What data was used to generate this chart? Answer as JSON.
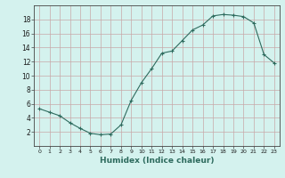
{
  "x": [
    0,
    1,
    2,
    3,
    4,
    5,
    6,
    7,
    8,
    9,
    10,
    11,
    12,
    13,
    14,
    15,
    16,
    17,
    18,
    19,
    20,
    21,
    22,
    23
  ],
  "y": [
    5.3,
    4.8,
    4.3,
    3.3,
    2.5,
    1.8,
    1.6,
    1.7,
    3.0,
    6.5,
    9.0,
    11.0,
    13.2,
    13.5,
    15.0,
    16.5,
    17.2,
    18.5,
    18.7,
    18.6,
    18.4,
    17.5,
    13.0,
    11.8
  ],
  "xlabel": "Humidex (Indice chaleur)",
  "line_color": "#2e6b5e",
  "bg_color": "#d4f2ee",
  "grid_color": "#c8a8a8",
  "ylim": [
    0,
    20
  ],
  "xlim": [
    -0.5,
    23.5
  ],
  "yticks": [
    2,
    4,
    6,
    8,
    10,
    12,
    14,
    16,
    18
  ],
  "xticks": [
    0,
    1,
    2,
    3,
    4,
    5,
    6,
    7,
    8,
    9,
    10,
    11,
    12,
    13,
    14,
    15,
    16,
    17,
    18,
    19,
    20,
    21,
    22,
    23
  ]
}
